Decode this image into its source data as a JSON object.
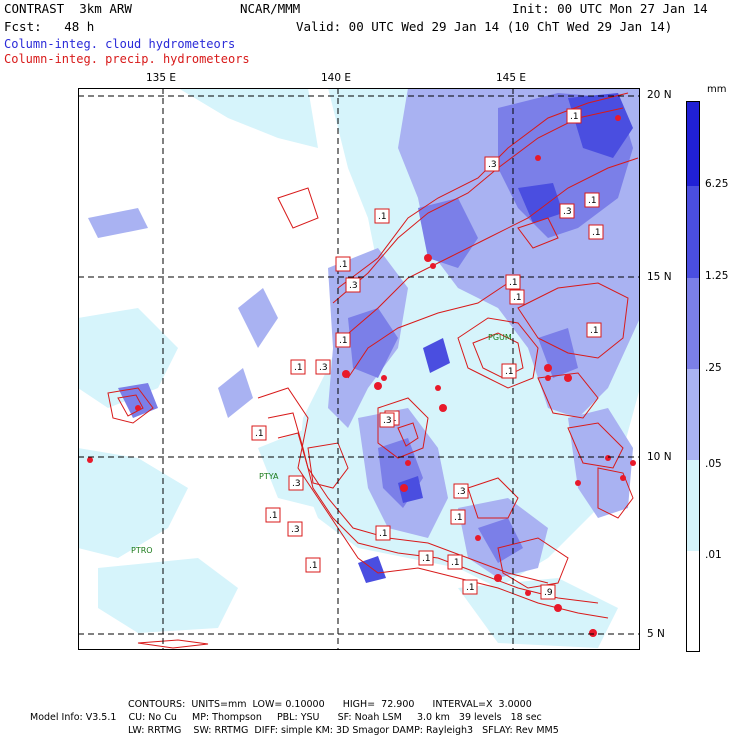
{
  "header": {
    "left_line1": "CONTRAST  3km ARW",
    "center_line1": "NCAR/MMM",
    "right_line1": "Init: 00 UTC Mon 27 Jan 14",
    "left_line2": "Fcst:   48 h",
    "right_line2": "Valid: 00 UTC Wed 29 Jan 14 (10 ChT Wed 29 Jan 14)",
    "field1": "Column-integ. cloud hydrometeors",
    "field2": "Column-integ. precip. hydrometeors"
  },
  "colors": {
    "cloud_text": "#2a2ad8",
    "precip_text": "#d81a1a",
    "shade_light": "#d6f4fb",
    "shade_mid": "#a9b2f2",
    "shade_med": "#7b7fe8",
    "shade_dark": "#4a4ee0",
    "shade_darkest": "#2020d6"
  },
  "map": {
    "lon_labels": [
      "135 E",
      "140 E",
      "145 E"
    ],
    "lat_labels": [
      "20 N",
      "15 N",
      "10 N",
      "5 N"
    ],
    "stations": [
      "PGUM",
      "PTYA",
      "PTRO"
    ],
    "contour_labels": [
      ".1",
      ".3",
      ".1",
      ".1",
      ".3",
      ".1",
      ".1",
      ".1",
      ".3",
      ".1",
      ".1",
      ".1",
      ".3",
      ".1",
      ".1",
      ".3",
      ".1",
      ".1",
      ".1",
      ".3",
      ".1",
      ".1",
      ".1",
      ".3",
      ".1",
      ".1",
      ".3",
      ".1",
      ".9",
      ".1"
    ]
  },
  "legend": {
    "unit": "mm",
    "labels": [
      "6.25",
      "1.25",
      ".25",
      ".05",
      ".01"
    ]
  },
  "footer": {
    "contours": "CONTOURS:  UNITS=mm  LOW= 0.10000      HIGH=  72.900      INTERVAL=X  3.0000",
    "model_line1": "Model Info: V3.5.1    CU: No Cu     MP: Thompson     PBL: YSU      SF: Noah LSM     3.0 km   39 levels   18 sec",
    "model_line2": "LW: RRTMG    SW: RRTMG  DIFF: simple KM: 3D Smagor DAMP: Rayleigh3   SFLAY: Rev MM5"
  }
}
